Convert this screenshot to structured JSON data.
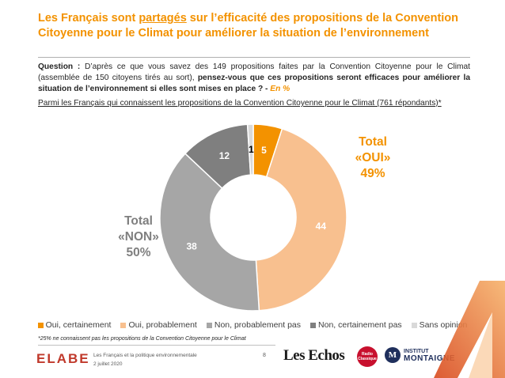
{
  "header": {
    "title_part1": "Les Français sont ",
    "title_emph": "partagés",
    "title_part2": " sur l’efficacité des propositions de la Convention Citoyenne pour le Climat pour améliorer la situation de l’environnement"
  },
  "question": {
    "label": "Question :",
    "text_plain": " D’après ce que vous savez des 149 propositions faites par la Convention Citoyenne pour le Climat (assemblée de 150 citoyens tirés au sort), ",
    "text_bold": "pensez-vous que ces propositions seront efficaces pour améliorer la situation de l’environnement si elles sont mises en place ? -",
    "unit": " En %"
  },
  "population": "Parmi les Français qui connaissent les propositions de la Convention Citoyenne pour le Climat (761 répondants)*",
  "chart_data": {
    "type": "pie",
    "subtype": "donut",
    "categories": [
      "Oui, certainement",
      "Oui, probablement",
      "Non, probablement pas",
      "Non, certainement pas",
      "Sans opinion"
    ],
    "values": [
      5,
      44,
      38,
      12,
      1
    ],
    "colors": [
      "#f39200",
      "#f8c08f",
      "#a6a6a6",
      "#7f7f7f",
      "#d9d9d9"
    ],
    "label_colors": [
      "#ffffff",
      "#ffffff",
      "#ffffff",
      "#ffffff",
      "#000000"
    ],
    "legend_position": "bottom"
  },
  "totals": {
    "oui": {
      "line1": "Total",
      "line2": "«OUI»",
      "value": "49%"
    },
    "non": {
      "line1": "Total",
      "line2": "«NON»",
      "value": "50%"
    }
  },
  "footnote": "*25% ne connaissent pas les propositions de la Convention Citoyenne pour le Climat",
  "footer": {
    "brand": "ELABE",
    "doc_title": "Les Français et la politique environnementale",
    "date": "2 juillet 2020",
    "page": "8",
    "partner1": "Les Echos",
    "partner2": "Radio Classique",
    "partner3_mark": "M",
    "partner3_line1": "INSTITUT",
    "partner3_line2": "MONTAIGNE"
  }
}
